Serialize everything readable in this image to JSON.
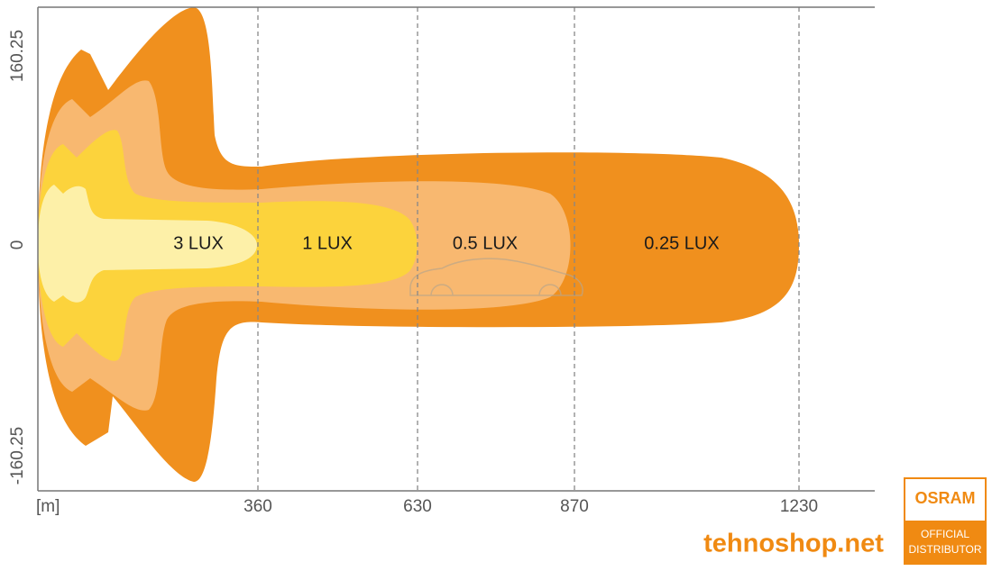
{
  "axis": {
    "y_labels": [
      "160.25",
      "0",
      "-160.25"
    ],
    "x_unit": "[m]",
    "x_labels": [
      "360",
      "630",
      "870",
      "1230"
    ]
  },
  "zones": [
    "3 LUX",
    "1 LUX",
    "0.5 LUX",
    "0.25 LUX"
  ],
  "brand": {
    "logo": "OSRAM",
    "badge": [
      "OFFICIAL",
      "DISTRIBUTOR"
    ],
    "site": "tehnoshop.net"
  }
}
